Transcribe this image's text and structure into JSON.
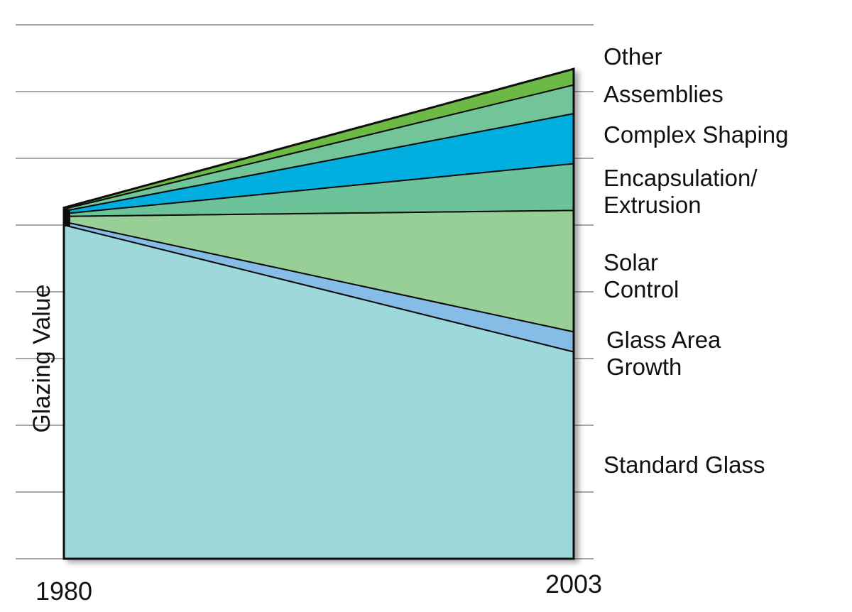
{
  "chart_data": {
    "type": "area",
    "title": "",
    "xlabel": "",
    "ylabel": "Glazing Value",
    "x": [
      1980,
      2003
    ],
    "x_tick_labels": [
      "1980",
      "2003"
    ],
    "ylim": [
      0,
      8
    ],
    "stack_order": "bottom-to-top",
    "series": [
      {
        "name": "Standard Glass",
        "label_lines": [
          "Standard Glass"
        ],
        "values": [
          5.0,
          3.1
        ],
        "color": "#9dd8da"
      },
      {
        "name": "Glass Area Growth",
        "label_lines": [
          "Glass Area",
          "Growth"
        ],
        "values": [
          0.05,
          0.3
        ],
        "color": "#86bde6"
      },
      {
        "name": "Solar Control",
        "label_lines": [
          "Solar",
          "Control"
        ],
        "values": [
          0.08,
          1.82
        ],
        "color": "#98cf96"
      },
      {
        "name": "Encapsulation/ Extrusion",
        "label_lines": [
          "Encapsulation/",
          "Extrusion"
        ],
        "values": [
          0.04,
          0.7
        ],
        "color": "#6cc399"
      },
      {
        "name": "Complex Shaping",
        "label_lines": [
          "Complex Shaping"
        ],
        "values": [
          0.04,
          0.75
        ],
        "color": "#00aedf"
      },
      {
        "name": "Assemblies",
        "label_lines": [
          "Assemblies"
        ],
        "values": [
          0.03,
          0.43
        ],
        "color": "#72c499"
      },
      {
        "name": "Other",
        "label_lines": [
          "Other"
        ],
        "values": [
          0.02,
          0.24
        ],
        "color": "#6cba44"
      }
    ]
  }
}
